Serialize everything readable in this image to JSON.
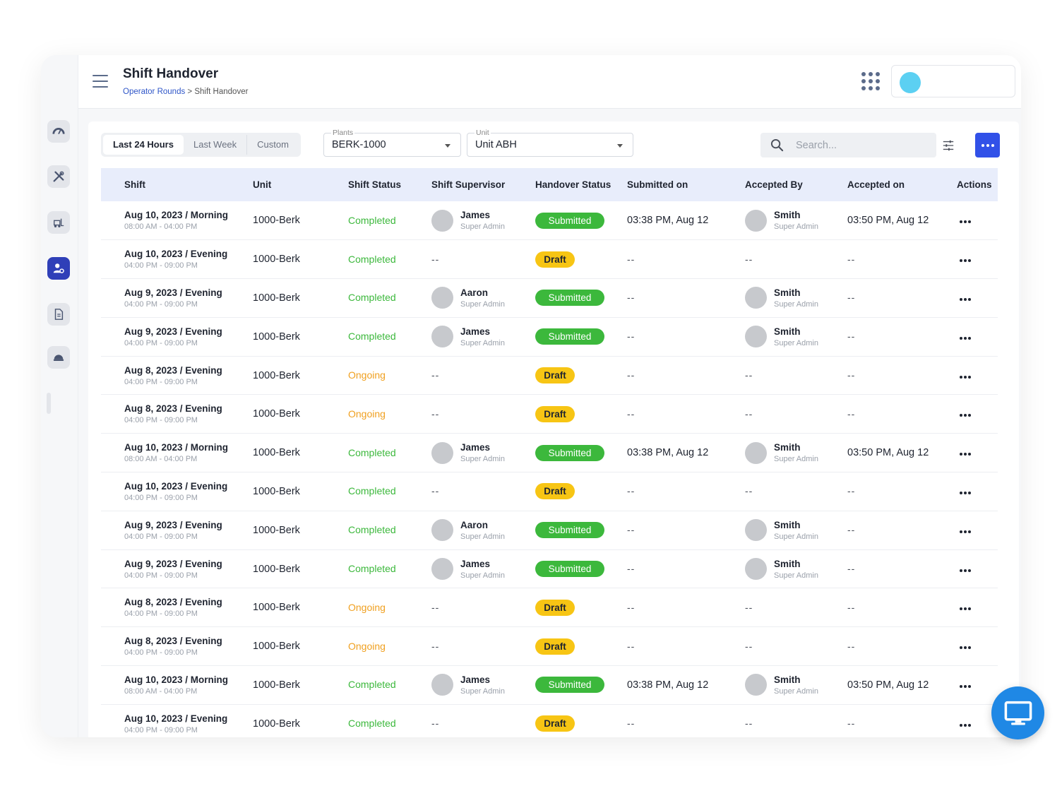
{
  "header": {
    "title": "Shift Handover",
    "breadcrumb": {
      "parent": "Operator Rounds",
      "separator": ">",
      "current": "Shift Handover"
    }
  },
  "filters": {
    "ranges": [
      "Last 24 Hours",
      "Last Week",
      "Custom"
    ],
    "active_range": "Last 24 Hours",
    "plants": {
      "label": "Plants",
      "value": "BERK-1000"
    },
    "unit": {
      "label": "Unit",
      "value": "Unit ABH"
    },
    "search": {
      "placeholder": "Search..."
    }
  },
  "table": {
    "columns": [
      "Shift",
      "Unit",
      "Shift Status",
      "Shift Supervisor",
      "Handover Status",
      "Submitted on",
      "Accepted By",
      "Accepted on",
      "Actions"
    ],
    "rows": [
      {
        "shift": "Aug 10, 2023 / Morning",
        "time": "08:00 AM - 04:00 PM",
        "unit": "1000-Berk",
        "status": "Completed",
        "supervisor": "James",
        "supervisor_role": "Super Admin",
        "handover": "Submitted",
        "submitted_on": "03:38 PM, Aug 12",
        "accepted_by": "Smith",
        "accepted_role": "Super Admin",
        "accepted_on": "03:50 PM, Aug 12"
      },
      {
        "shift": "Aug 10, 2023 / Evening",
        "time": "04:00 PM - 09:00 PM",
        "unit": "1000-Berk",
        "status": "Completed",
        "supervisor": "--",
        "supervisor_role": "",
        "handover": "Draft",
        "submitted_on": "--",
        "accepted_by": "--",
        "accepted_role": "",
        "accepted_on": "--"
      },
      {
        "shift": "Aug 9, 2023 / Evening",
        "time": "04:00 PM - 09:00 PM",
        "unit": "1000-Berk",
        "status": "Completed",
        "supervisor": "Aaron",
        "supervisor_role": "Super Admin",
        "handover": "Submitted",
        "submitted_on": "--",
        "accepted_by": "Smith",
        "accepted_role": "Super Admin",
        "accepted_on": "--"
      },
      {
        "shift": "Aug 9, 2023 / Evening",
        "time": "04:00 PM - 09:00 PM",
        "unit": "1000-Berk",
        "status": "Completed",
        "supervisor": "James",
        "supervisor_role": "Super Admin",
        "handover": "Submitted",
        "submitted_on": "--",
        "accepted_by": "Smith",
        "accepted_role": "Super Admin",
        "accepted_on": "--"
      },
      {
        "shift": "Aug 8, 2023 / Evening",
        "time": "04:00 PM - 09:00 PM",
        "unit": "1000-Berk",
        "status": "Ongoing",
        "supervisor": "--",
        "supervisor_role": "",
        "handover": "Draft",
        "submitted_on": "--",
        "accepted_by": "--",
        "accepted_role": "",
        "accepted_on": "--"
      },
      {
        "shift": "Aug 8, 2023 / Evening",
        "time": "04:00 PM - 09:00 PM",
        "unit": "1000-Berk",
        "status": "Ongoing",
        "supervisor": "--",
        "supervisor_role": "",
        "handover": "Draft",
        "submitted_on": "--",
        "accepted_by": "--",
        "accepted_role": "",
        "accepted_on": "--"
      },
      {
        "shift": "Aug 10, 2023 / Morning",
        "time": "08:00 AM - 04:00 PM",
        "unit": "1000-Berk",
        "status": "Completed",
        "supervisor": "James",
        "supervisor_role": "Super Admin",
        "handover": "Submitted",
        "submitted_on": "03:38 PM, Aug 12",
        "accepted_by": "Smith",
        "accepted_role": "Super Admin",
        "accepted_on": "03:50 PM, Aug 12"
      },
      {
        "shift": "Aug 10, 2023 / Evening",
        "time": "04:00 PM - 09:00 PM",
        "unit": "1000-Berk",
        "status": "Completed",
        "supervisor": "--",
        "supervisor_role": "",
        "handover": "Draft",
        "submitted_on": "--",
        "accepted_by": "--",
        "accepted_role": "",
        "accepted_on": "--"
      },
      {
        "shift": "Aug 9, 2023 / Evening",
        "time": "04:00 PM - 09:00 PM",
        "unit": "1000-Berk",
        "status": "Completed",
        "supervisor": "Aaron",
        "supervisor_role": "Super Admin",
        "handover": "Submitted",
        "submitted_on": "--",
        "accepted_by": "Smith",
        "accepted_role": "Super Admin",
        "accepted_on": "--"
      },
      {
        "shift": "Aug 9, 2023 / Evening",
        "time": "04:00 PM - 09:00 PM",
        "unit": "1000-Berk",
        "status": "Completed",
        "supervisor": "James",
        "supervisor_role": "Super Admin",
        "handover": "Submitted",
        "submitted_on": "--",
        "accepted_by": "Smith",
        "accepted_role": "Super Admin",
        "accepted_on": "--"
      },
      {
        "shift": "Aug 8, 2023 / Evening",
        "time": "04:00 PM - 09:00 PM",
        "unit": "1000-Berk",
        "status": "Ongoing",
        "supervisor": "--",
        "supervisor_role": "",
        "handover": "Draft",
        "submitted_on": "--",
        "accepted_by": "--",
        "accepted_role": "",
        "accepted_on": "--"
      },
      {
        "shift": "Aug 8, 2023 / Evening",
        "time": "04:00 PM - 09:00 PM",
        "unit": "1000-Berk",
        "status": "Ongoing",
        "supervisor": "--",
        "supervisor_role": "",
        "handover": "Draft",
        "submitted_on": "--",
        "accepted_by": "--",
        "accepted_role": "",
        "accepted_on": "--"
      },
      {
        "shift": "Aug 10, 2023 / Morning",
        "time": "08:00 AM - 04:00 PM",
        "unit": "1000-Berk",
        "status": "Completed",
        "supervisor": "James",
        "supervisor_role": "Super Admin",
        "handover": "Submitted",
        "submitted_on": "03:38 PM, Aug 12",
        "accepted_by": "Smith",
        "accepted_role": "Super Admin",
        "accepted_on": "03:50 PM, Aug 12"
      },
      {
        "shift": "Aug 10, 2023 / Evening",
        "time": "04:00 PM - 09:00 PM",
        "unit": "1000-Berk",
        "status": "Completed",
        "supervisor": "--",
        "supervisor_role": "",
        "handover": "Draft",
        "submitted_on": "--",
        "accepted_by": "--",
        "accepted_role": "",
        "accepted_on": "--"
      }
    ]
  },
  "icons": {
    "sidebar": [
      "dashboard-gauge-icon",
      "tools-icon",
      "forklift-icon",
      "user-settings-icon",
      "document-icon",
      "helmet-icon"
    ],
    "header": [
      "hamburger-menu-icon",
      "apps-grid-icon"
    ],
    "fab": "monitor-icon"
  },
  "colors": {
    "accent": "#3151e8",
    "sidebar_active": "#2f3fb8",
    "completed": "#3cb83c",
    "ongoing": "#f0a020",
    "submitted_badge": "#3cb83c",
    "draft_badge": "#f7c514",
    "header_row": "#e8edfb",
    "avatar_user": "#5cd0f2",
    "fab": "#1f88e5"
  }
}
